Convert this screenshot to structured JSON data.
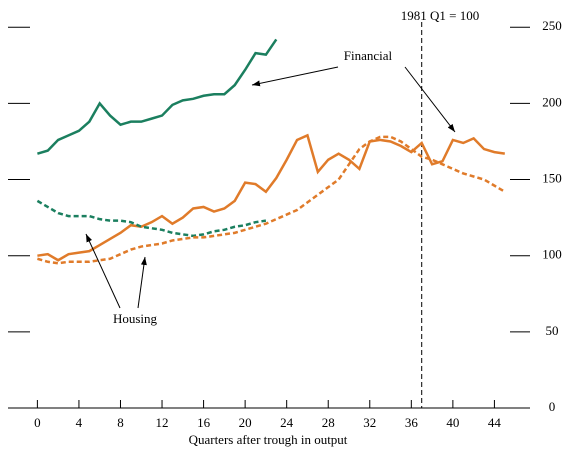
{
  "chart_data": {
    "type": "line",
    "x_label": "Quarters after trough in output",
    "x": [
      0,
      1,
      2,
      3,
      4,
      5,
      6,
      7,
      8,
      9,
      10,
      11,
      12,
      13,
      14,
      15,
      16,
      17,
      18,
      19,
      20,
      21,
      22,
      23,
      24,
      25,
      26,
      27,
      28,
      29,
      30,
      31,
      32,
      33,
      34,
      35,
      36,
      37,
      38,
      39,
      40,
      41,
      42,
      43,
      44,
      45
    ],
    "series": [
      {
        "color": "#1b7f5f",
        "dash": false,
        "values": [
          167,
          169,
          176,
          179,
          182,
          188,
          200,
          192,
          186,
          188,
          188,
          190,
          192,
          199,
          202,
          203,
          205,
          206,
          206,
          212,
          222,
          233,
          232,
          242,
          null,
          null,
          null,
          null,
          null,
          null,
          null,
          null,
          null,
          null,
          null,
          null,
          null,
          null,
          null,
          null,
          null,
          null,
          null,
          null,
          null,
          null
        ]
      },
      {
        "color": "#e07b2a",
        "dash": false,
        "values": [
          100,
          101,
          97,
          101,
          102,
          103,
          107,
          111,
          115,
          120,
          119,
          122,
          126,
          121,
          125,
          131,
          132,
          129,
          131,
          136,
          148,
          147,
          142,
          151,
          163,
          176,
          179,
          155,
          163,
          167,
          163,
          157,
          175,
          176,
          175,
          172,
          168,
          174,
          160,
          162,
          176,
          174,
          177,
          170,
          168,
          167
        ]
      },
      {
        "color": "#1b7f5f",
        "dash": true,
        "values": [
          136,
          132,
          128,
          126,
          126,
          126,
          124,
          123,
          123,
          122,
          119,
          118,
          117,
          115,
          114,
          113,
          114,
          116,
          117,
          119,
          120,
          122,
          123,
          null,
          null,
          null,
          null,
          null,
          null,
          null,
          null,
          null,
          null,
          null,
          null,
          null,
          null,
          null,
          null,
          null,
          null,
          null,
          null,
          null,
          null,
          null
        ]
      },
      {
        "color": "#e07b2a",
        "dash": true,
        "values": [
          98,
          96,
          95,
          96,
          96,
          96,
          97,
          98,
          101,
          104,
          106,
          107,
          108,
          110,
          111,
          112,
          112,
          113,
          114,
          115,
          117,
          119,
          121,
          124,
          127,
          130,
          135,
          140,
          145,
          150,
          160,
          170,
          175,
          178,
          178,
          175,
          170,
          165,
          163,
          160,
          157,
          154,
          152,
          150,
          146,
          142
        ]
      }
    ],
    "annotations": [
      "Financial",
      "Housing",
      "1981 Q1 = 100"
    ],
    "vlines": [
      37
    ],
    "xlim": [
      -1,
      45.5
    ],
    "xticks": [
      0,
      4,
      8,
      12,
      16,
      20,
      24,
      28,
      32,
      36,
      40,
      44
    ],
    "ylim": [
      0,
      260
    ],
    "yticks": [
      0,
      50,
      100,
      150,
      200,
      250
    ]
  }
}
